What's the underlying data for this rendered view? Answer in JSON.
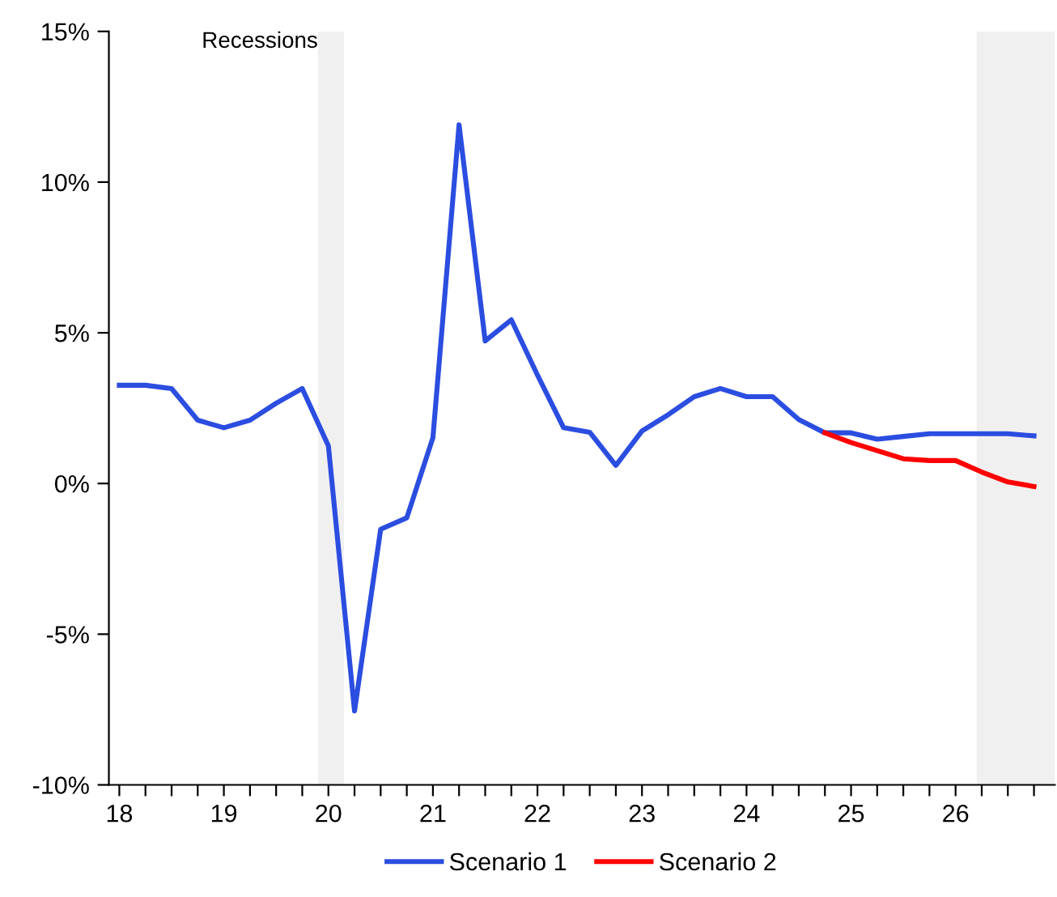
{
  "chart_data": {
    "type": "line",
    "x": [
      18,
      18.25,
      18.5,
      18.75,
      19,
      19.25,
      19.5,
      19.75,
      20,
      20.25,
      20.5,
      20.75,
      21,
      21.25,
      21.5,
      21.75,
      22,
      22.25,
      22.5,
      22.75,
      23,
      23.25,
      23.5,
      23.75,
      24,
      24.25,
      24.5,
      24.75,
      25,
      25.25,
      25.5,
      25.75,
      26,
      26.25,
      26.5,
      26.75
    ],
    "series": [
      {
        "name": "Scenario 1",
        "color": "#2b4de0",
        "values": [
          3.26,
          3.26,
          3.15,
          2.1,
          1.85,
          2.1,
          2.66,
          3.15,
          1.25,
          -7.55,
          -1.52,
          -1.14,
          1.52,
          11.9,
          4.73,
          5.43,
          3.6,
          1.85,
          1.7,
          0.6,
          1.74,
          2.28,
          2.88,
          3.15,
          2.88,
          2.88,
          2.12,
          1.68,
          1.68,
          1.47,
          1.56,
          1.65,
          1.65,
          1.65,
          1.65,
          1.58
        ]
      },
      {
        "name": "Scenario 2",
        "color": "#ff0000",
        "values": [
          null,
          null,
          null,
          null,
          null,
          null,
          null,
          null,
          null,
          null,
          null,
          null,
          null,
          null,
          null,
          null,
          null,
          null,
          null,
          null,
          null,
          null,
          null,
          null,
          null,
          null,
          null,
          1.68,
          1.36,
          1.09,
          0.82,
          0.76,
          0.76,
          0.38,
          0.05,
          -0.1
        ]
      }
    ],
    "xlim": [
      17.9,
      26.95
    ],
    "xticks": [
      18,
      {
        "value": 18.25,
        "label": null
      },
      {
        "value": 18.5,
        "label": null
      },
      {
        "value": 18.75,
        "label": null
      },
      19,
      {
        "value": 19.25,
        "label": null
      },
      {
        "value": 19.5,
        "label": null
      },
      {
        "value": 19.75,
        "label": null
      },
      20,
      {
        "value": 20.25,
        "label": null
      },
      {
        "value": 20.5,
        "label": null
      },
      {
        "value": 20.75,
        "label": null
      },
      21,
      {
        "value": 21.25,
        "label": null
      },
      {
        "value": 21.5,
        "label": null
      },
      {
        "value": 21.75,
        "label": null
      },
      22,
      {
        "value": 22.25,
        "label": null
      },
      {
        "value": 22.5,
        "label": null
      },
      {
        "value": 22.75,
        "label": null
      },
      23,
      {
        "value": 23.25,
        "label": null
      },
      {
        "value": 23.5,
        "label": null
      },
      {
        "value": 23.75,
        "label": null
      },
      24,
      {
        "value": 24.25,
        "label": null
      },
      {
        "value": 24.5,
        "label": null
      },
      {
        "value": 24.75,
        "label": null
      },
      25,
      {
        "value": 25.25,
        "label": null
      },
      {
        "value": 25.5,
        "label": null
      },
      {
        "value": 25.75,
        "label": null
      },
      26,
      {
        "value": 26.25,
        "label": null
      },
      {
        "value": 26.5,
        "label": null
      },
      {
        "value": 26.75,
        "label": null
      }
    ],
    "ylim": [
      -10,
      15
    ],
    "yticks": [
      {
        "value": -10,
        "label": "-10%"
      },
      {
        "value": -5,
        "label": "-5%"
      },
      {
        "value": 0,
        "label": "0%"
      },
      {
        "value": 5,
        "label": "5%"
      },
      {
        "value": 10,
        "label": "10%"
      },
      {
        "value": 15,
        "label": "15%"
      }
    ],
    "bands": [
      {
        "axis": "x",
        "from": 19.9,
        "to": 20.15,
        "color": "#f0f0f0"
      },
      {
        "axis": "x",
        "from": 26.2,
        "to": 26.95,
        "color": "#f0f0f0"
      }
    ],
    "annotations": [
      "Recessions"
    ],
    "grid": false,
    "legend": "bottom",
    "marker": "none",
    "line_style": "solid"
  }
}
